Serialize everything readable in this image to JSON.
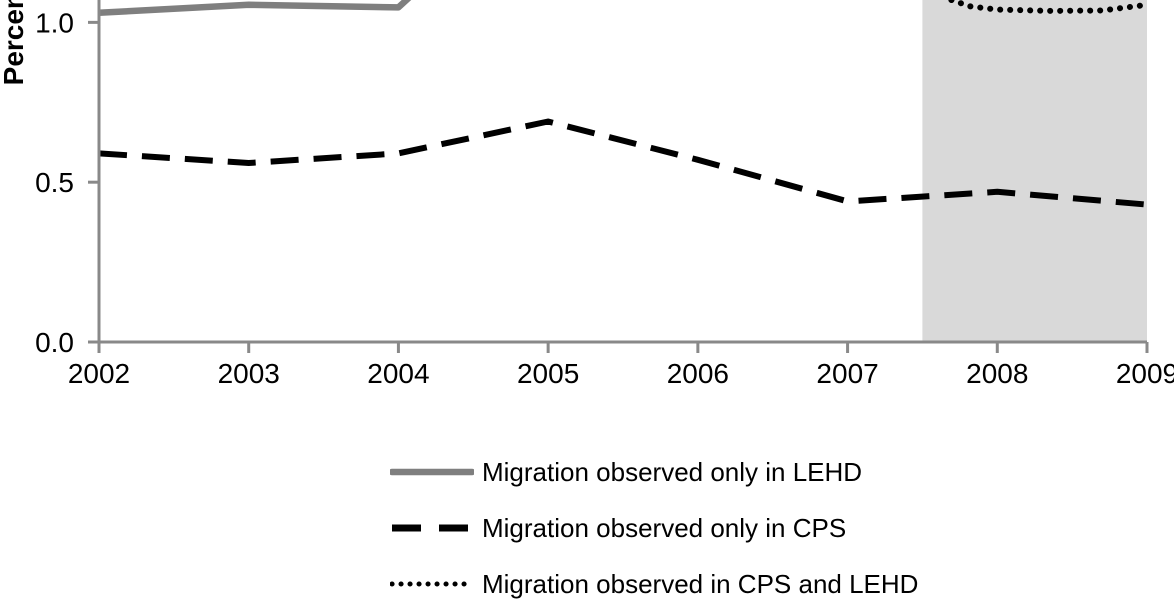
{
  "chart_data": {
    "type": "line",
    "title": "",
    "xlabel": "",
    "ylabel": "Percent",
    "xlim": [
      2002,
      2009
    ],
    "ylim": [
      0,
      1.07
    ],
    "crop_note": "figure is cropped at the top edge; values above ~1.07 are not visible",
    "xticks": [
      2002,
      2003,
      2004,
      2005,
      2006,
      2007,
      2008,
      2009
    ],
    "yticks": [
      0,
      0.5,
      1.0
    ],
    "grid": false,
    "legend_position": "bottom",
    "shaded_band": {
      "x_start": 2007.5,
      "x_end": 2009,
      "color": "#d9d9d9"
    },
    "series": [
      {
        "name": "Migration observed only in LEHD",
        "style": "solid",
        "color": "#7f7f7f",
        "width": 6.5,
        "points": [
          [
            2002,
            1.03
          ],
          [
            2003,
            1.055
          ],
          [
            2004,
            1.047
          ],
          [
            2004.1,
            1.09
          ]
        ],
        "note": "rises steeply just after 2004 and exits the cropped top of the chart"
      },
      {
        "name": "Migration observed only in CPS",
        "style": "dashed",
        "color": "#000000",
        "width": 6,
        "points": [
          [
            2002,
            0.59
          ],
          [
            2003,
            0.56
          ],
          [
            2004,
            0.59
          ],
          [
            2005,
            0.69
          ],
          [
            2006,
            0.57
          ],
          [
            2007,
            0.44
          ],
          [
            2008,
            0.47
          ],
          [
            2009,
            0.43
          ]
        ]
      },
      {
        "name": "Migration observed in CPS and LEHD",
        "style": "dotted",
        "color": "#000000",
        "width": 6,
        "points": [
          [
            2007.63,
            1.08
          ],
          [
            2007.82,
            1.05
          ],
          [
            2008,
            1.04
          ],
          [
            2008.35,
            1.036
          ],
          [
            2008.7,
            1.037
          ],
          [
            2009,
            1.055
          ]
        ],
        "note": "enters from the cropped top edge around 2007.6, only visible inside the shaded band"
      }
    ]
  },
  "colors": {
    "axis": "#898989",
    "tick_text": "#000000",
    "legend_text": "#000000",
    "background": "#ffffff"
  }
}
